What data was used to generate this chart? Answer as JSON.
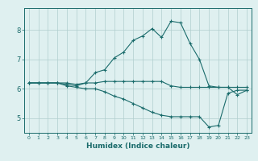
{
  "xlabel": "Humidex (Indice chaleur)",
  "x": [
    0,
    1,
    2,
    3,
    4,
    5,
    6,
    7,
    8,
    9,
    10,
    11,
    12,
    13,
    14,
    15,
    16,
    17,
    18,
    19,
    20,
    21,
    22,
    23
  ],
  "line1": [
    6.2,
    6.2,
    6.2,
    6.2,
    6.2,
    6.15,
    6.2,
    6.2,
    6.25,
    6.25,
    6.25,
    6.25,
    6.25,
    6.25,
    6.25,
    6.1,
    6.05,
    6.05,
    6.05,
    6.05,
    6.05,
    6.05,
    6.05,
    6.05
  ],
  "line2": [
    6.2,
    6.2,
    6.2,
    6.2,
    6.15,
    6.1,
    6.2,
    6.55,
    6.65,
    7.05,
    7.25,
    7.65,
    7.8,
    8.05,
    7.75,
    8.3,
    8.25,
    7.55,
    7.0,
    6.1,
    6.05,
    6.05,
    5.8,
    5.95
  ],
  "line3": [
    6.2,
    6.2,
    6.2,
    6.2,
    6.1,
    6.05,
    6.0,
    6.0,
    5.9,
    5.75,
    5.65,
    5.5,
    5.35,
    5.2,
    5.1,
    5.05,
    5.05,
    5.05,
    5.05,
    4.7,
    4.75,
    5.85,
    5.95,
    5.95
  ],
  "line_color": "#1a6b6b",
  "bg_color": "#dff0f0",
  "grid_color": "#b0cece",
  "ylim": [
    4.5,
    8.75
  ],
  "xlim": [
    -0.5,
    23.5
  ],
  "yticks": [
    5,
    6,
    7,
    8
  ],
  "xticks": [
    0,
    1,
    2,
    3,
    4,
    5,
    6,
    7,
    8,
    9,
    10,
    11,
    12,
    13,
    14,
    15,
    16,
    17,
    18,
    19,
    20,
    21,
    22,
    23
  ]
}
